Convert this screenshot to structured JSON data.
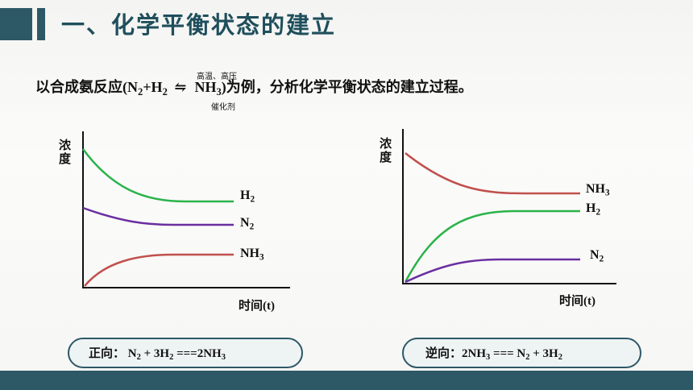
{
  "header": {
    "title": "一、化学平衡状态的建立"
  },
  "intro": {
    "text": [
      "以合成氨反应(N",
      "2",
      "+H",
      "2",
      " ",
      "NH",
      "3",
      ")为例，分析化学平衡状态的建立过程。"
    ],
    "condition_top": "高温、高压",
    "arrow": "⇋",
    "condition_bottom": "催化剂"
  },
  "left_graph": {
    "y_label": "浓度",
    "x_label": "时间(t)",
    "labels": [
      [
        "H",
        "2"
      ],
      [
        "N",
        "2"
      ],
      [
        "NH",
        "3"
      ]
    ]
  },
  "right_graph": {
    "y_label": "浓度",
    "x_label": "时间(t)",
    "labels": [
      [
        "NH",
        "3"
      ],
      [
        "H",
        "2"
      ],
      [
        "N",
        "2"
      ]
    ]
  },
  "forward": [
    "正向：  N",
    "2",
    " + 3H",
    "2",
    " ===2NH",
    "3"
  ],
  "reverse": [
    "逆向：2NH",
    "3",
    " === N",
    "2",
    " + 3H",
    "2"
  ]
}
